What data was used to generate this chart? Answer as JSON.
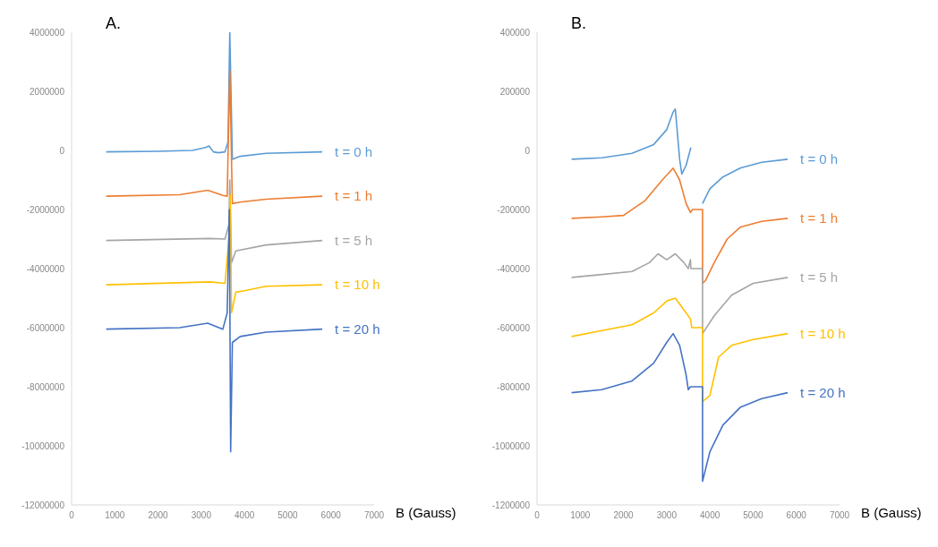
{
  "chart_data": [
    {
      "type": "line",
      "title": "A.",
      "xlabel": "B (Gauss)",
      "xlim": [
        0,
        7000
      ],
      "xticks": [
        0,
        1000,
        2000,
        3000,
        4000,
        5000,
        6000,
        7000
      ],
      "ylim": [
        -12000000,
        4000000
      ],
      "yticks": [
        -12000000,
        -10000000,
        -8000000,
        -6000000,
        -4000000,
        -2000000,
        0,
        2000000,
        4000000
      ],
      "grid": false,
      "legend": false,
      "marker": "none",
      "line_style": "solid",
      "series": [
        {
          "name": "t = 0 h",
          "color": "#5b9bd5",
          "x": [
            800,
            2000,
            2800,
            3100,
            3180,
            3280,
            3400,
            3550,
            3620,
            3660,
            3720,
            3900,
            4500,
            5800
          ],
          "values": [
            -50000,
            -30000,
            0,
            100000,
            150000,
            -50000,
            -80000,
            -50000,
            300000,
            4000000,
            -300000,
            -200000,
            -100000,
            -50000
          ]
        },
        {
          "name": "t = 1 h",
          "color": "#ed7d31",
          "x": [
            800,
            2500,
            3150,
            3500,
            3600,
            3660,
            3720,
            3900,
            4500,
            5800
          ],
          "values": [
            -1550000,
            -1500000,
            -1350000,
            -1520000,
            -1550000,
            2700000,
            -1800000,
            -1750000,
            -1650000,
            -1550000
          ]
        },
        {
          "name": "t = 5 h",
          "color": "#a5a5a5",
          "x": [
            800,
            3200,
            3550,
            3640,
            3660,
            3700,
            3800,
            4500,
            5800
          ],
          "values": [
            -3050000,
            -2980000,
            -3000000,
            -2500000,
            -1000000,
            -3800000,
            -3400000,
            -3200000,
            -3050000
          ]
        },
        {
          "name": "t = 10 h",
          "color": "#ffc000",
          "x": [
            800,
            3200,
            3550,
            3640,
            3670,
            3700,
            3800,
            4000,
            4500,
            5800
          ],
          "values": [
            -4550000,
            -4450000,
            -4500000,
            -3000000,
            -1500000,
            -5500000,
            -4800000,
            -4750000,
            -4600000,
            -4550000
          ]
        },
        {
          "name": "t = 20 h",
          "color": "#4472c4",
          "x": [
            800,
            2500,
            3150,
            3500,
            3600,
            3650,
            3680,
            3720,
            3900,
            4500,
            5800
          ],
          "values": [
            -6050000,
            -6000000,
            -5850000,
            -6050000,
            -5500000,
            -2000000,
            -10200000,
            -6500000,
            -6300000,
            -6150000,
            -6050000
          ]
        }
      ]
    },
    {
      "type": "line",
      "title": "B.",
      "xlabel": "B (Gauss)",
      "xlim": [
        0,
        7000
      ],
      "xticks": [
        0,
        1000,
        2000,
        3000,
        4000,
        5000,
        6000,
        7000
      ],
      "ylim": [
        -1200000,
        400000
      ],
      "yticks": [
        -1200000,
        -1000000,
        -800000,
        -600000,
        -400000,
        -200000,
        0,
        200000,
        400000
      ],
      "grid": false,
      "legend": false,
      "marker": "none",
      "line_style": "solid",
      "series": [
        {
          "name": "t = 0 h",
          "color": "#5b9bd5",
          "x": [
            800,
            1500,
            2200,
            2700,
            3000,
            3150,
            3200,
            3300,
            3350,
            3450,
            3560,
            3700,
            3830,
            4000,
            4300,
            4700,
            5200,
            5800
          ],
          "values": [
            -30000,
            -25000,
            -10000,
            20000,
            70000,
            130000,
            140000,
            -30000,
            -80000,
            -50000,
            10000,
            null,
            -180000,
            -130000,
            -90000,
            -60000,
            -40000,
            -30000
          ]
        },
        {
          "name": "t = 1 h",
          "color": "#ed7d31",
          "x": [
            800,
            1500,
            2000,
            2500,
            2900,
            3150,
            3300,
            3450,
            3550,
            3600,
            3830,
            3830,
            3900,
            4100,
            4400,
            4700,
            5200,
            5800
          ],
          "values": [
            -230000,
            -225000,
            -220000,
            -170000,
            -100000,
            -60000,
            -100000,
            -180000,
            -210000,
            -200000,
            -200000,
            -450000,
            -440000,
            -380000,
            -300000,
            -260000,
            -240000,
            -230000
          ]
        },
        {
          "name": "t = 5 h",
          "color": "#a5a5a5",
          "x": [
            800,
            1500,
            2200,
            2600,
            2800,
            3000,
            3200,
            3400,
            3500,
            3550,
            3560,
            3830,
            3830,
            4100,
            4500,
            5000,
            5800
          ],
          "values": [
            -430000,
            -420000,
            -410000,
            -380000,
            -350000,
            -370000,
            -350000,
            -380000,
            -400000,
            -370000,
            -400000,
            -400000,
            -620000,
            -560000,
            -490000,
            -450000,
            -430000
          ]
        },
        {
          "name": "t = 10 h",
          "color": "#ffc000",
          "x": [
            800,
            1500,
            2200,
            2700,
            3000,
            3200,
            3400,
            3550,
            3580,
            3830,
            3830,
            4000,
            4200,
            4500,
            5000,
            5800
          ],
          "values": [
            -630000,
            -610000,
            -590000,
            -550000,
            -510000,
            -500000,
            -540000,
            -570000,
            -600000,
            -600000,
            -850000,
            -830000,
            -700000,
            -660000,
            -640000,
            -620000
          ]
        },
        {
          "name": "t = 20 h",
          "color": "#4472c4",
          "x": [
            800,
            1500,
            2200,
            2700,
            3000,
            3150,
            3300,
            3450,
            3500,
            3550,
            3580,
            3830,
            3830,
            4000,
            4300,
            4700,
            5200,
            5800
          ],
          "values": [
            -820000,
            -810000,
            -780000,
            -720000,
            -650000,
            -620000,
            -660000,
            -760000,
            -810000,
            -800000,
            -800000,
            -800000,
            -1120000,
            -1020000,
            -930000,
            -870000,
            -840000,
            -820000
          ]
        }
      ]
    }
  ]
}
